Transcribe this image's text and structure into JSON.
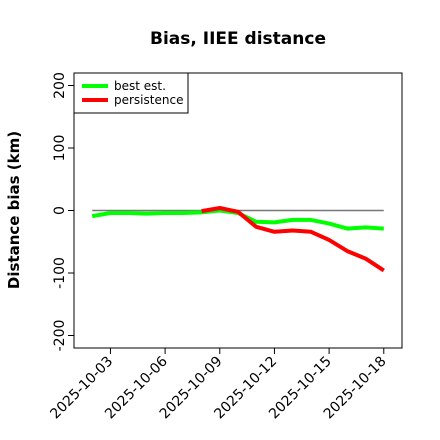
{
  "chart_data": {
    "type": "line",
    "title": "Bias, IIEE distance",
    "xlabel": "",
    "ylabel": "Distance bias (km)",
    "ylim": [
      -200,
      200
    ],
    "yticks": [
      -200,
      -100,
      0,
      100,
      200
    ],
    "xlim": [
      "2025-10-01",
      "2025-10-19"
    ],
    "xticks": [
      "2025-10-03",
      "2025-10-06",
      "2025-10-09",
      "2025-10-12",
      "2025-10-15",
      "2025-10-18"
    ],
    "reference_line": {
      "y": 0,
      "x": [
        "2025-10-02",
        "2025-10-18"
      ],
      "color": "#777777"
    },
    "legend": {
      "position": "top-left"
    },
    "series": [
      {
        "name": "best est.",
        "color": "#00ff00",
        "x": [
          "2025-10-02",
          "2025-10-03",
          "2025-10-04",
          "2025-10-05",
          "2025-10-06",
          "2025-10-07",
          "2025-10-08",
          "2025-10-09",
          "2025-10-10",
          "2025-10-11",
          "2025-10-12",
          "2025-10-13",
          "2025-10-14",
          "2025-10-15",
          "2025-10-16",
          "2025-10-17",
          "2025-10-18"
        ],
        "values": [
          -9,
          -4,
          -4,
          -5,
          -4,
          -4,
          -3,
          0,
          -4,
          -18,
          -19,
          -15,
          -15,
          -21,
          -29,
          -27,
          -29
        ]
      },
      {
        "name": "persistence",
        "color": "#ff0000",
        "x": [
          "2025-10-08",
          "2025-10-09",
          "2025-10-10",
          "2025-10-11",
          "2025-10-12",
          "2025-10-13",
          "2025-10-14",
          "2025-10-15",
          "2025-10-16",
          "2025-10-17",
          "2025-10-18"
        ],
        "values": [
          -1,
          4,
          -2,
          -26,
          -34,
          -32,
          -34,
          -47,
          -65,
          -77,
          -96
        ]
      }
    ]
  }
}
